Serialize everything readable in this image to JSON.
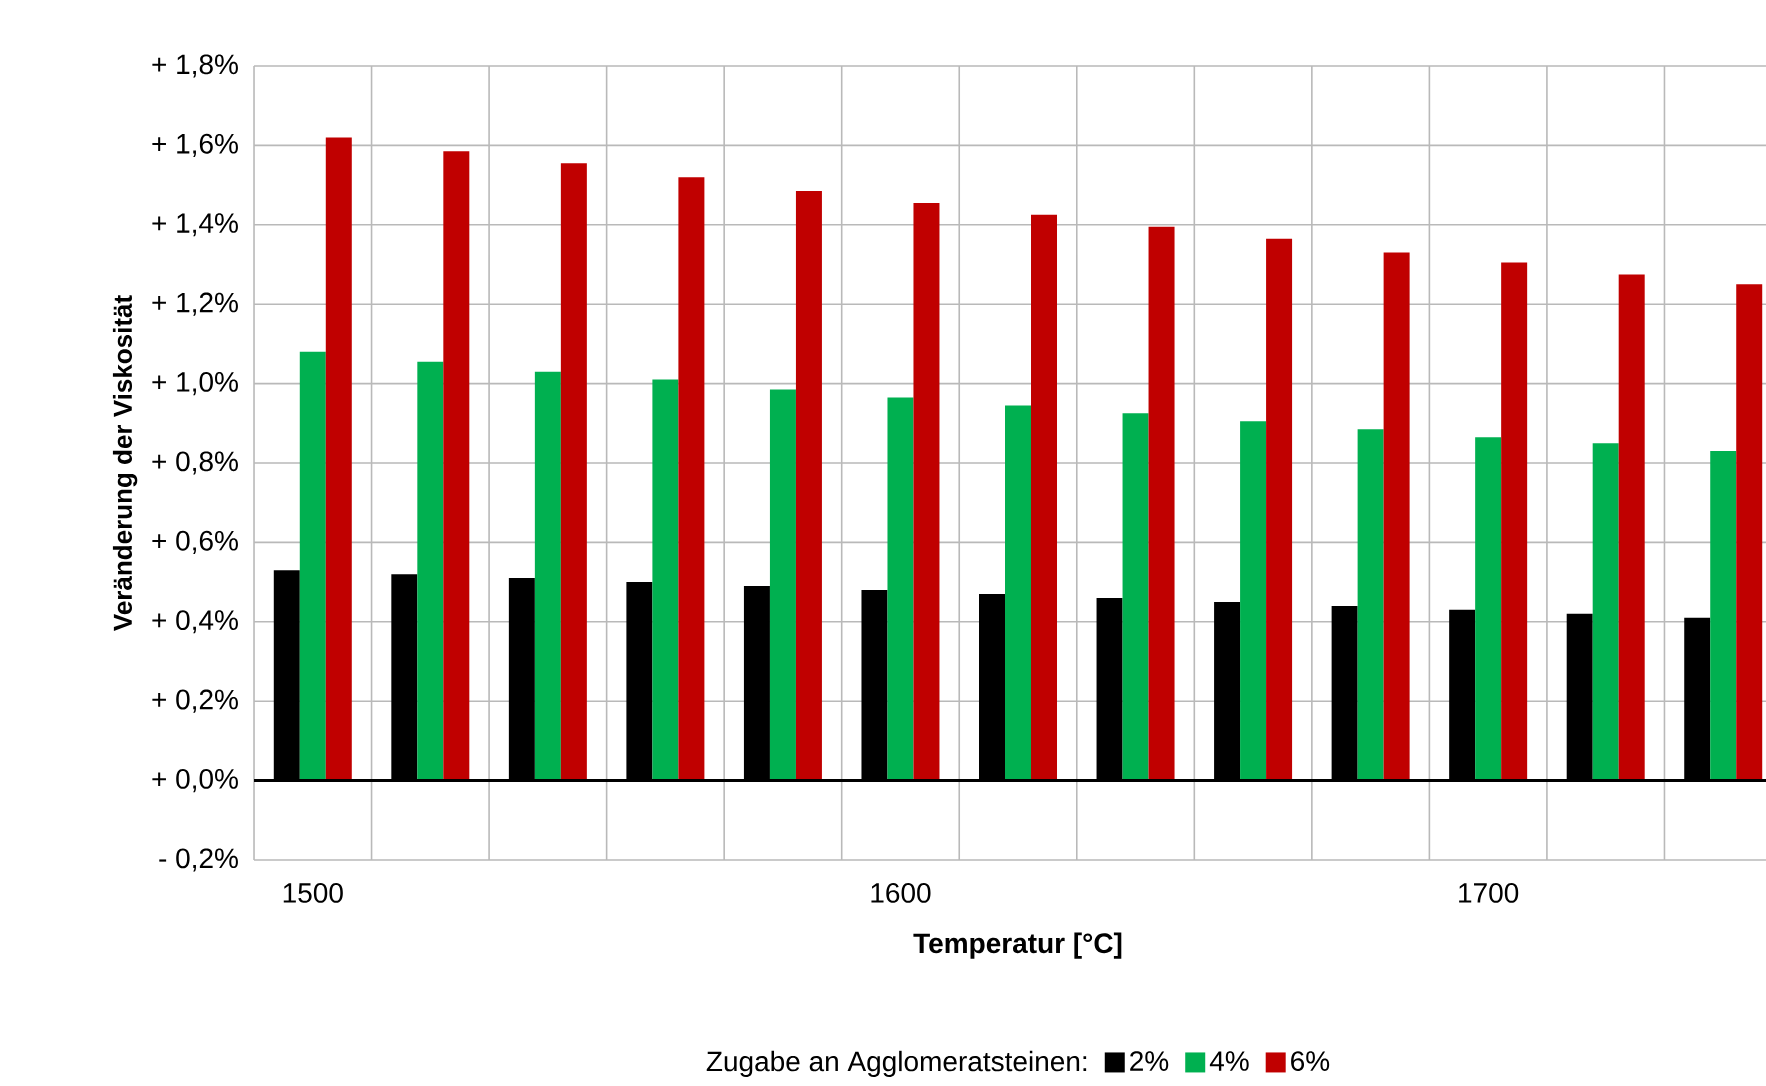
{
  "chart_data": {
    "type": "bar",
    "xlabel": "Temperatur [°C]",
    "ylabel": "Veränderung der Viskosität",
    "legend_title": "Zugabe an Agglomeratsteinen:",
    "categories": [
      "1500",
      null,
      null,
      null,
      null,
      "1600",
      null,
      null,
      null,
      null,
      "1700",
      null,
      null
    ],
    "series": [
      {
        "name": "2%",
        "color": "#000000",
        "values": [
          0.53,
          0.52,
          0.51,
          0.5,
          0.49,
          0.48,
          0.47,
          0.46,
          0.45,
          0.44,
          0.43,
          0.42,
          0.41
        ]
      },
      {
        "name": "4%",
        "color": "#00b050",
        "values": [
          1.08,
          1.055,
          1.03,
          1.01,
          0.985,
          0.965,
          0.945,
          0.925,
          0.905,
          0.885,
          0.865,
          0.85,
          0.83
        ]
      },
      {
        "name": "6%",
        "color": "#c00000",
        "values": [
          1.62,
          1.585,
          1.555,
          1.52,
          1.485,
          1.455,
          1.425,
          1.395,
          1.365,
          1.33,
          1.305,
          1.275,
          1.25
        ]
      }
    ],
    "ylim": [
      -0.2,
      1.8
    ],
    "yticks": [
      {
        "value": -0.2,
        "label": "- 0,2%"
      },
      {
        "value": 0,
        "label": "+ 0,0%"
      },
      {
        "value": 0.2,
        "label": "+ 0,2%"
      },
      {
        "value": 0.4,
        "label": "+ 0,4%"
      },
      {
        "value": 0.6,
        "label": "+ 0,6%"
      },
      {
        "value": 0.8,
        "label": "+ 0,8%"
      },
      {
        "value": 1.0,
        "label": "+ 1,0%"
      },
      {
        "value": 1.2,
        "label": "+ 1,2%"
      },
      {
        "value": 1.4,
        "label": "+ 1,4%"
      },
      {
        "value": 1.6,
        "label": "+ 1,6%"
      },
      {
        "value": 1.8,
        "label": "+ 1,8%"
      }
    ],
    "grid": true,
    "legend": "bottom"
  }
}
